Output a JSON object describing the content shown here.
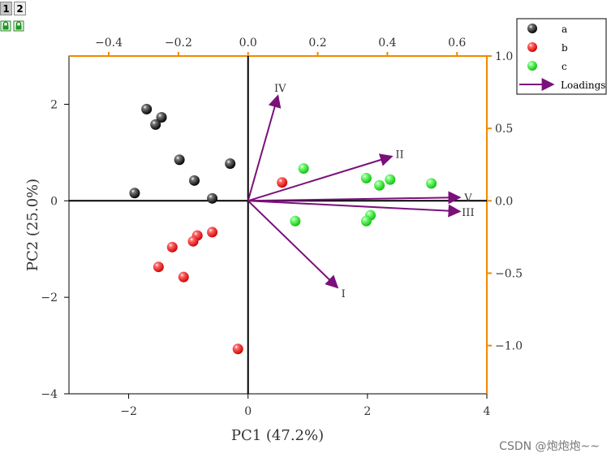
{
  "workbook_tabs": [
    {
      "label": "1",
      "active": true
    },
    {
      "label": "2",
      "active": false
    }
  ],
  "watermark": "CSDN @炮炮炮~~",
  "colors": {
    "a": "#000000",
    "b": "#ff1010",
    "c": "#10ee10",
    "loadings": "#7a107a",
    "axis_secondary": "#f08a00"
  },
  "chart_data": {
    "type": "scatter",
    "title": "",
    "xlabel": "PC1 (47.2%)",
    "ylabel": "PC2 (25.0%)",
    "xlim": [
      -3,
      4
    ],
    "ylim": [
      -4,
      3
    ],
    "xticks": [
      -2,
      0,
      2,
      4
    ],
    "yticks": [
      -4,
      -2,
      0,
      2
    ],
    "xtick_labels": [
      "−2",
      "0",
      "2",
      "4"
    ],
    "ytick_labels": [
      "−4",
      "−2",
      "0",
      "2"
    ],
    "top_axis": {
      "lim": [
        -0.5143,
        0.6857
      ],
      "ticks": [
        -0.4,
        -0.2,
        0.0,
        0.2,
        0.4,
        0.6
      ],
      "tick_labels": [
        "−0.4",
        "−0.2",
        "0.0",
        "0.2",
        "0.4",
        "0.6"
      ]
    },
    "right_axis": {
      "lim": [
        -1.333,
        1.0
      ],
      "ticks": [
        1.0,
        0.5,
        0.0,
        -0.5,
        -1.0
      ],
      "tick_labels": [
        "1.0",
        "0.5",
        "0.0",
        "−0.5",
        "−1.0"
      ]
    },
    "legend_position": "top-right",
    "series": [
      {
        "name": "a",
        "color_key": "a",
        "points": [
          [
            -1.7,
            1.9
          ],
          [
            -1.55,
            1.58
          ],
          [
            -1.45,
            1.73
          ],
          [
            -1.15,
            0.85
          ],
          [
            -0.9,
            0.42
          ],
          [
            -0.3,
            0.77
          ],
          [
            -0.6,
            0.05
          ],
          [
            -1.9,
            0.16
          ]
        ]
      },
      {
        "name": "b",
        "color_key": "b",
        "points": [
          [
            0.57,
            0.38
          ],
          [
            -0.6,
            -0.65
          ],
          [
            -0.85,
            -0.72
          ],
          [
            -0.92,
            -0.84
          ],
          [
            -1.27,
            -0.96
          ],
          [
            -1.5,
            -1.37
          ],
          [
            -1.08,
            -1.58
          ],
          [
            -0.17,
            -3.07
          ]
        ]
      },
      {
        "name": "c",
        "color_key": "c",
        "points": [
          [
            0.93,
            0.67
          ],
          [
            1.98,
            0.47
          ],
          [
            2.2,
            0.32
          ],
          [
            2.38,
            0.44
          ],
          [
            3.07,
            0.36
          ],
          [
            0.79,
            -0.42
          ],
          [
            2.05,
            -0.3
          ],
          [
            1.98,
            -0.42
          ]
        ]
      }
    ],
    "loadings": {
      "name": "Loadings",
      "color_key": "loadings",
      "vectors": [
        {
          "label": "I",
          "x": 1.5,
          "y": -1.8
        },
        {
          "label": "II",
          "x": 2.41,
          "y": 0.92
        },
        {
          "label": "III",
          "x": 3.55,
          "y": -0.22
        },
        {
          "label": "IV",
          "x": 0.5,
          "y": 2.18
        },
        {
          "label": "V",
          "x": 3.55,
          "y": 0.07
        }
      ]
    }
  }
}
